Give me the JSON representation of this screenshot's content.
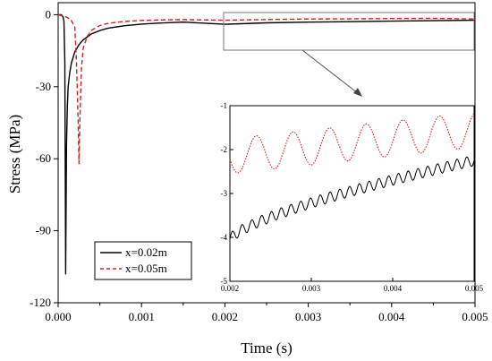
{
  "chart_data": [
    {
      "type": "line",
      "title": "",
      "xlabel": "Time (s)",
      "ylabel": "Stress (MPa)",
      "xlim": [
        0,
        0.005
      ],
      "ylim": [
        -120,
        5
      ],
      "xticks": [
        0.0,
        0.001,
        0.002,
        0.003,
        0.004,
        0.005
      ],
      "xtick_labels": [
        "0.000",
        "0.001",
        "0.002",
        "0.003",
        "0.004",
        "0.005"
      ],
      "yticks": [
        0,
        -30,
        -60,
        -90,
        -120
      ],
      "ytick_labels": [
        "0",
        "-30",
        "-60",
        "-90",
        "-120"
      ],
      "grid": false,
      "legend": "bottom-left",
      "series": [
        {
          "name": "x=0.02m",
          "color": "#000000",
          "dash": "solid",
          "x": [
            0.0,
            4e-05,
            6e-05,
            7e-05,
            8e-05,
            8.5e-05,
            9e-05,
            9.5e-05,
            0.0001,
            0.00011,
            0.00012,
            0.00014,
            0.00016,
            0.0002,
            0.00025,
            0.0003,
            0.0004,
            0.0005,
            0.0006,
            0.0008,
            0.001,
            0.0012,
            0.0015,
            0.002,
            0.0025,
            0.003,
            0.0035,
            0.004,
            0.0045,
            0.005
          ],
          "y": [
            0,
            0,
            -1,
            -3,
            -20,
            -60,
            -108,
            -80,
            -55,
            -38,
            -30,
            -24,
            -20,
            -15.5,
            -12.5,
            -10.5,
            -8,
            -6.6,
            -5.6,
            -4.6,
            -3.9,
            -3.5,
            -3.1,
            -4.0,
            -3.4,
            -3.1,
            -2.9,
            -2.7,
            -2.5,
            -2.3
          ]
        },
        {
          "name": "x=0.05m",
          "color": "#cc2222",
          "dash": "dashed",
          "x": [
            0.0,
            0.0001,
            0.00015,
            0.0002,
            0.00022,
            0.00024,
            0.00025,
            0.00026,
            0.00028,
            0.0003,
            0.00035,
            0.0004,
            0.0005,
            0.0006,
            0.0008,
            0.001,
            0.0012,
            0.0015,
            0.002,
            0.0025,
            0.003,
            0.0035,
            0.004,
            0.0045,
            0.005
          ],
          "y": [
            0,
            -1,
            -2,
            -5,
            -20,
            -45,
            -62,
            -45,
            -22,
            -14,
            -9,
            -6.5,
            -4.5,
            -3.6,
            -2.8,
            -2.4,
            -2.2,
            -2.0,
            -2.3,
            -2.0,
            -1.8,
            -1.7,
            -1.6,
            -1.5,
            -1.8
          ]
        }
      ]
    },
    {
      "type": "line",
      "title": "",
      "xlabel": "",
      "ylabel": "",
      "xlim": [
        0.002,
        0.005
      ],
      "ylim": [
        -5,
        -1
      ],
      "xticks": [
        0.002,
        0.003,
        0.004,
        0.005
      ],
      "xtick_labels": [
        "0.002",
        "0.003",
        "0.004",
        "0.005"
      ],
      "yticks": [
        -1,
        -2,
        -3,
        -4,
        -5
      ],
      "ytick_labels": [
        "-1",
        "-2",
        "-3",
        "-4",
        "-5"
      ],
      "grid": false,
      "series": [
        {
          "name": "x=0.02m",
          "color": "#000000",
          "dash": "solid",
          "trend": {
            "start": -4.05,
            "end": -2.25
          },
          "oscillation": {
            "amplitude": 0.12,
            "period": 0.00012
          }
        },
        {
          "name": "x=0.05m",
          "color": "#cc2222",
          "dash": "dotted",
          "x_start": 0.002,
          "y_start": -2.3,
          "y_first_peak": -2.7,
          "oscillation": {
            "mean_start": -2.15,
            "mean_end": -1.55,
            "amplitude": 0.4,
            "period": 0.00045
          }
        }
      ]
    }
  ]
}
